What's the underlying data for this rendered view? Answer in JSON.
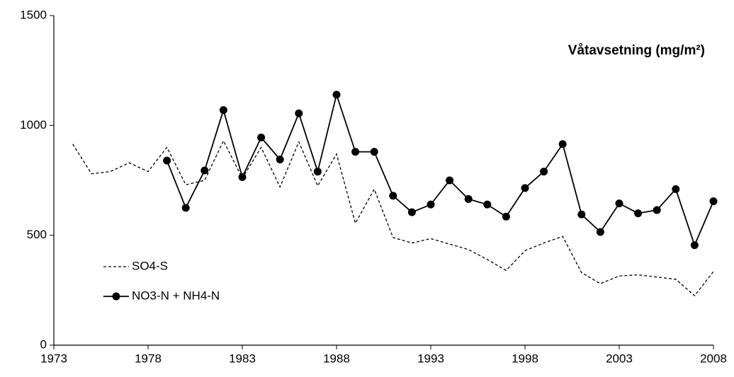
{
  "chart_data": {
    "type": "line",
    "title": "Våtavsetning (mg/m²)",
    "x": [
      1974,
      1975,
      1976,
      1977,
      1978,
      1979,
      1980,
      1981,
      1982,
      1983,
      1984,
      1985,
      1986,
      1987,
      1988,
      1989,
      1990,
      1991,
      1992,
      1993,
      1994,
      1995,
      1996,
      1997,
      1998,
      1999,
      2000,
      2001,
      2002,
      2003,
      2004,
      2005,
      2006,
      2007,
      2008
    ],
    "series": [
      {
        "name": "SO4-S",
        "color": "#000000",
        "dash": true,
        "marker": false,
        "values": [
          915,
          780,
          790,
          830,
          790,
          900,
          730,
          750,
          930,
          760,
          900,
          720,
          925,
          725,
          870,
          555,
          710,
          490,
          465,
          485,
          460,
          435,
          390,
          340,
          430,
          465,
          495,
          330,
          280,
          315,
          320,
          310,
          300,
          225,
          335
        ]
      },
      {
        "name": "NO3-N + NH4-N",
        "color": "#000000",
        "dash": false,
        "marker": true,
        "values": [
          null,
          null,
          null,
          null,
          null,
          840,
          625,
          795,
          1070,
          765,
          945,
          845,
          1055,
          790,
          1140,
          880,
          880,
          680,
          605,
          640,
          750,
          665,
          640,
          585,
          715,
          790,
          915,
          595,
          515,
          645,
          600,
          615,
          710,
          455,
          655
        ]
      }
    ],
    "xlim": [
      1973,
      2008
    ],
    "xticks": [
      1973,
      1978,
      1983,
      1988,
      1993,
      1998,
      2003,
      2008
    ],
    "ylim": [
      0,
      1500
    ],
    "yticks": [
      0,
      500,
      1000,
      1500
    ],
    "grid": false,
    "legend": "left"
  }
}
